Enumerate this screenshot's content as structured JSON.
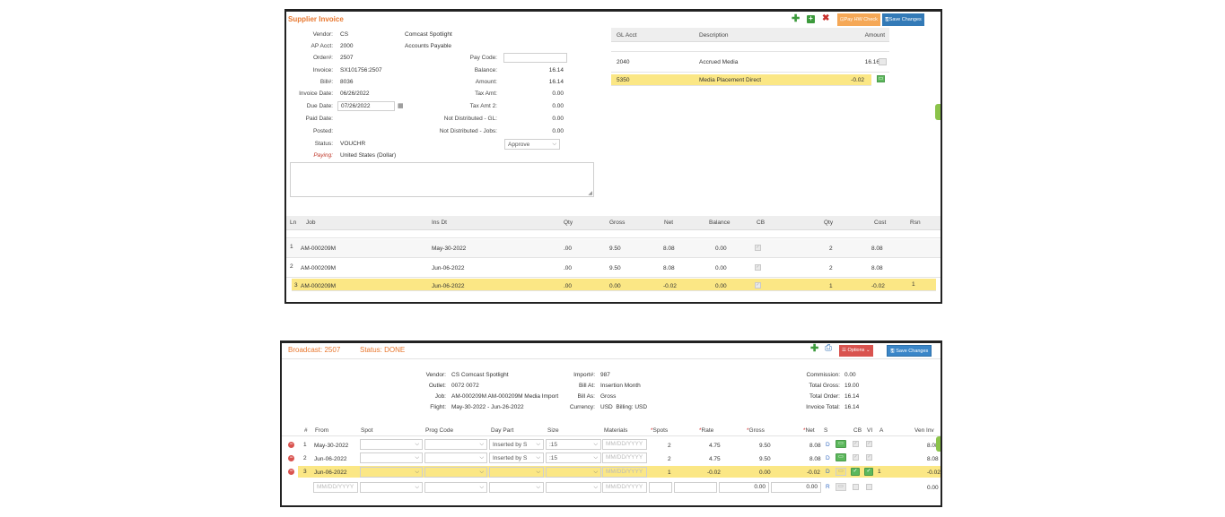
{
  "invoice": {
    "title": "Supplier Invoice",
    "toolbar": {
      "pay_check_label": "Pay HW Check",
      "save_label": "Save Changes"
    },
    "fields": {
      "vendor_label": "Vendor:",
      "vendor_code": "CS",
      "vendor_name": "Comcast Spotlight",
      "ap_acct_label": "AP Acct:",
      "ap_acct": "2000",
      "ap_acct_name": "Accounts Payable",
      "order_label": "Order#:",
      "order": "2507",
      "invoice_label": "Invoice:",
      "invoice": "SX101756:2507",
      "bill_label": "Bill#:",
      "bill": "8036",
      "invoice_date_label": "Invoice Date:",
      "invoice_date": "06/26/2022",
      "due_date_label": "Due Date:",
      "due_date": "07/26/2022",
      "paid_date_label": "Paid Date:",
      "posted_label": "Posted:",
      "status_label": "Status:",
      "status": "VOUCHR",
      "paying_label": "Paying:",
      "paying": "United States (Dollar)",
      "pay_code_label": "Pay Code:",
      "pay_code": "",
      "balance_label": "Balance:",
      "balance": "16.14",
      "amount_label": "Amount:",
      "amount": "16.14",
      "tax_amt_label": "Tax Amt:",
      "tax_amt": "0.00",
      "tax_amt2_label": "Tax Amt 2:",
      "tax_amt2": "0.00",
      "not_dist_gl_label": "Not Distributed - GL:",
      "not_dist_gl": "0.00",
      "not_dist_jobs_label": "Not Distributed - Jobs:",
      "not_dist_jobs": "0.00",
      "approval": "Approve"
    },
    "gl_table": {
      "headers": [
        "GL Acct",
        "Description",
        "Amount"
      ],
      "rows": [
        {
          "acct": "2040",
          "desc": "Accrued Media",
          "amount": "16.16"
        },
        {
          "acct": "5350",
          "desc": "Media Placement Direct",
          "amount": "-0.02"
        }
      ]
    },
    "lines_table": {
      "headers": [
        "Ln",
        "Job",
        "Ins Dt",
        "Qty",
        "Gross",
        "Net",
        "Balance",
        "CB",
        "Qty",
        "Cost",
        "Rsn"
      ],
      "rows": [
        {
          "ln": "1",
          "job": "AM-000209M",
          "ins_dt": "May-30-2022",
          "qty": ".00",
          "gross": "9.50",
          "net": "8.08",
          "balance": "0.00",
          "qty2": "2",
          "cost": "8.08",
          "rsn": ""
        },
        {
          "ln": "2",
          "job": "AM-000209M",
          "ins_dt": "Jun-06-2022",
          "qty": ".00",
          "gross": "9.50",
          "net": "8.08",
          "balance": "0.00",
          "qty2": "2",
          "cost": "8.08",
          "rsn": ""
        },
        {
          "ln": "3",
          "job": "AM-000209M",
          "ins_dt": "Jun-06-2022",
          "qty": ".00",
          "gross": "0.00",
          "net": "-0.02",
          "balance": "0.00",
          "qty2": "1",
          "cost": "-0.02",
          "rsn": "1"
        }
      ]
    }
  },
  "broadcast": {
    "title": "Broadcast: 2507",
    "status": "Status: DONE",
    "toolbar": {
      "options_label": "Options",
      "save_label": "Save Changes"
    },
    "info": {
      "vendor_label": "Vendor:",
      "vendor": "CS Comcast Spotlight",
      "outlet_label": "Outlet:",
      "outlet": "0072 0072",
      "job_label": "Job:",
      "job": "AM-000209M AM-000209M Media Import",
      "flight_label": "Flight:",
      "flight": "May-30-2022 - Jun-26-2022",
      "import_label": "Import#:",
      "import": "987",
      "bill_at_label": "Bill At:",
      "bill_at": "Insertion Month",
      "bill_as_label": "Bill As:",
      "bill_as": "Gross",
      "currency_label": "Currency:",
      "currency": "USD",
      "billing_label": "Billing:",
      "billing": "USD",
      "commission_label": "Commission:",
      "commission": "0.00",
      "total_gross_label": "Total Gross:",
      "total_gross": "19.00",
      "total_order_label": "Total Order:",
      "total_order": "16.14",
      "invoice_total_label": "Invoice Total:",
      "invoice_total": "16.14"
    },
    "table": {
      "headers": {
        "num": "#",
        "from": "From",
        "spot": "Spot",
        "prog": "Prog Code",
        "daypart": "Day Part",
        "size": "Size",
        "materials": "Materials",
        "spots": "Spots",
        "rate": "Rate",
        "gross": "Gross",
        "net": "Net",
        "s": "S",
        "cb": "CB",
        "vi": "VI",
        "a": "A",
        "veninv": "Ven Inv"
      },
      "required_mark": "*",
      "date_placeholder": "MM/DD/YYYY",
      "rows": [
        {
          "num": "1",
          "from": "May-30-2022",
          "daypart": "Inserted by S",
          "size": ":15",
          "spots": "2",
          "rate": "4.75",
          "gross": "9.50",
          "net": "8.08",
          "s": "D",
          "a": "",
          "veninv": "8.08"
        },
        {
          "num": "2",
          "from": "Jun-06-2022",
          "daypart": "Inserted by S",
          "size": ":15",
          "spots": "2",
          "rate": "4.75",
          "gross": "9.50",
          "net": "8.08",
          "s": "D",
          "a": "",
          "veninv": "8.08"
        },
        {
          "num": "3",
          "from": "Jun-06-2022",
          "daypart": "",
          "size": "",
          "spots": "1",
          "rate": "-0.02",
          "gross": "0.00",
          "net": "-0.02",
          "s": "D",
          "a": "1",
          "veninv": "-0.02"
        },
        {
          "num": "",
          "from": "",
          "daypart": "",
          "size": "",
          "spots": "",
          "rate": "",
          "gross": "0.00",
          "net": "0.00",
          "s": "R",
          "a": "",
          "veninv": "0.00"
        }
      ]
    }
  }
}
